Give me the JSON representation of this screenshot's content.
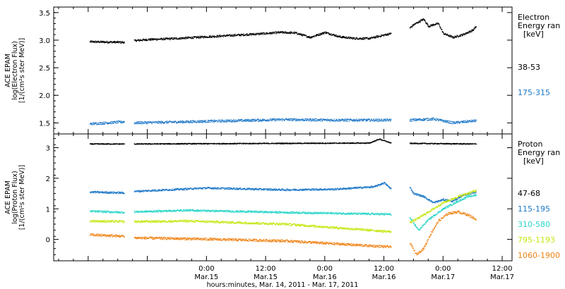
{
  "chart_data": [
    {
      "type": "scatter",
      "ylabel_lines": [
        "ACE EPAM",
        "log(Electron Flux)",
        "[1/(cm²s ster MeV)]"
      ],
      "ylim": [
        1.3,
        3.6
      ],
      "yticks": [
        1.5,
        2.0,
        2.5,
        3.0,
        3.5
      ],
      "ytick_labels": [
        "1.5",
        "2.0",
        "2.5",
        "3.0",
        "3.5"
      ],
      "legend_title": [
        "Electron",
        "Energy ran",
        "[keV]"
      ],
      "series": [
        {
          "name": "38-53",
          "color": "#000000",
          "segments": [
            [
              [
                0.3,
                2.97
              ],
              [
                7.3,
                2.96
              ]
            ],
            [
              [
                9.3,
                2.99
              ],
              [
                12,
                3.01
              ],
              [
                18,
                3.03
              ],
              [
                24,
                3.06
              ],
              [
                30,
                3.09
              ],
              [
                36,
                3.12
              ],
              [
                39,
                3.14
              ],
              [
                42,
                3.13
              ],
              [
                45,
                3.05
              ],
              [
                48,
                3.14
              ],
              [
                51,
                3.06
              ],
              [
                54,
                3.03
              ],
              [
                57,
                3.03
              ],
              [
                61.4,
                3.12
              ]
            ],
            [
              [
                65.2,
                3.22
              ],
              [
                66,
                3.28
              ],
              [
                67,
                3.33
              ],
              [
                68,
                3.38
              ],
              [
                69,
                3.25
              ],
              [
                70,
                3.28
              ],
              [
                71,
                3.3
              ],
              [
                72,
                3.12
              ],
              [
                74,
                3.05
              ],
              [
                76,
                3.1
              ],
              [
                78,
                3.18
              ],
              [
                78.7,
                3.25
              ]
            ]
          ],
          "noise": 0.018
        },
        {
          "name": "175-315",
          "color": "#1e78c8",
          "segments": [
            [
              [
                0.3,
                1.48
              ],
              [
                7.3,
                1.52
              ]
            ],
            [
              [
                9.3,
                1.5
              ],
              [
                20,
                1.52
              ],
              [
                30,
                1.54
              ],
              [
                40,
                1.56
              ],
              [
                50,
                1.55
              ],
              [
                61.4,
                1.55
              ]
            ],
            [
              [
                65.2,
                1.55
              ],
              [
                70,
                1.57
              ],
              [
                74,
                1.5
              ],
              [
                78.7,
                1.54
              ]
            ]
          ],
          "noise": 0.022
        }
      ]
    },
    {
      "type": "scatter",
      "ylabel_lines": [
        "ACE EPAM",
        "log(Proton Flux)",
        "[1/(cm²s ster MeV)]"
      ],
      "ylim": [
        -0.7,
        3.45
      ],
      "yticks": [
        0,
        1,
        2,
        3
      ],
      "ytick_labels": [
        "0",
        "1",
        "2",
        "3"
      ],
      "legend_title": [
        "Proton",
        "Energy ran",
        "[keV]"
      ],
      "series": [
        {
          "name": "47-68",
          "color": "#000000",
          "segments": [
            [
              [
                0.3,
                3.12
              ],
              [
                7.3,
                3.12
              ]
            ],
            [
              [
                9.3,
                3.12
              ],
              [
                40,
                3.14
              ],
              [
                57,
                3.15
              ],
              [
                59,
                3.28
              ],
              [
                61.4,
                3.15
              ]
            ],
            [
              [
                65.2,
                3.14
              ],
              [
                78.7,
                3.12
              ]
            ]
          ],
          "noise": 0.015
        },
        {
          "name": "115-195",
          "color": "#1e78c8",
          "segments": [
            [
              [
                0.3,
                1.55
              ],
              [
                7.3,
                1.52
              ]
            ],
            [
              [
                9.3,
                1.57
              ],
              [
                24,
                1.68
              ],
              [
                40,
                1.62
              ],
              [
                50,
                1.64
              ],
              [
                58,
                1.72
              ],
              [
                60,
                1.85
              ],
              [
                61.4,
                1.65
              ]
            ],
            [
              [
                65.2,
                1.7
              ],
              [
                66,
                1.5
              ],
              [
                68,
                1.4
              ],
              [
                70,
                1.2
              ],
              [
                72,
                1.3
              ],
              [
                74,
                1.25
              ],
              [
                76,
                1.45
              ],
              [
                78.7,
                1.55
              ]
            ]
          ],
          "noise": 0.03
        },
        {
          "name": "310-580",
          "color": "#2ad6c8",
          "segments": [
            [
              [
                0.3,
                0.92
              ],
              [
                7.3,
                0.88
              ]
            ],
            [
              [
                9.3,
                0.9
              ],
              [
                20,
                0.95
              ],
              [
                40,
                0.88
              ],
              [
                61.4,
                0.82
              ]
            ],
            [
              [
                65.2,
                0.7
              ],
              [
                67,
                0.3
              ],
              [
                69,
                0.65
              ],
              [
                72,
                1.0
              ],
              [
                75,
                1.25
              ],
              [
                77,
                1.4
              ],
              [
                78.7,
                1.45
              ]
            ]
          ],
          "noise": 0.03
        },
        {
          "name": "795-1193",
          "color": "#c8e614",
          "segments": [
            [
              [
                0.3,
                0.6
              ],
              [
                7.3,
                0.58
              ]
            ],
            [
              [
                9.3,
                0.58
              ],
              [
                20,
                0.6
              ],
              [
                40,
                0.5
              ],
              [
                61.4,
                0.25
              ]
            ],
            [
              [
                65.2,
                0.55
              ],
              [
                67,
                0.7
              ],
              [
                69,
                0.9
              ],
              [
                72,
                1.2
              ],
              [
                75,
                1.4
              ],
              [
                78.7,
                1.6
              ]
            ]
          ],
          "noise": 0.035
        },
        {
          "name": "1060-1900",
          "color": "#f08214",
          "segments": [
            [
              [
                0.3,
                0.15
              ],
              [
                7.3,
                0.1
              ]
            ],
            [
              [
                9.3,
                0.05
              ],
              [
                20,
                0.02
              ],
              [
                40,
                -0.05
              ],
              [
                61.4,
                -0.25
              ]
            ],
            [
              [
                65.2,
                -0.1
              ],
              [
                66.5,
                -0.5
              ],
              [
                68,
                -0.3
              ],
              [
                69.5,
                0.2
              ],
              [
                71,
                0.6
              ],
              [
                73,
                0.85
              ],
              [
                75,
                0.9
              ],
              [
                77,
                0.8
              ],
              [
                78.7,
                0.65
              ]
            ]
          ],
          "noise": 0.04
        }
      ]
    }
  ],
  "x_axis": {
    "range_hours": [
      -7,
      86
    ],
    "ticks": [
      {
        "hour": 24,
        "time": "0:00",
        "date": "Mar.15"
      },
      {
        "hour": 36,
        "time": "12:00",
        "date": "Mar.15"
      },
      {
        "hour": 48,
        "time": "0:00",
        "date": "Mar.16"
      },
      {
        "hour": 60,
        "time": "12:00",
        "date": "Mar.16"
      },
      {
        "hour": 72,
        "time": "0:00",
        "date": "Mar.17"
      },
      {
        "hour": 84,
        "time": "12:00",
        "date": "Mar.17"
      }
    ],
    "label": "hours:minutes, Mar. 14, 2011 - Mar. 17, 2011"
  }
}
